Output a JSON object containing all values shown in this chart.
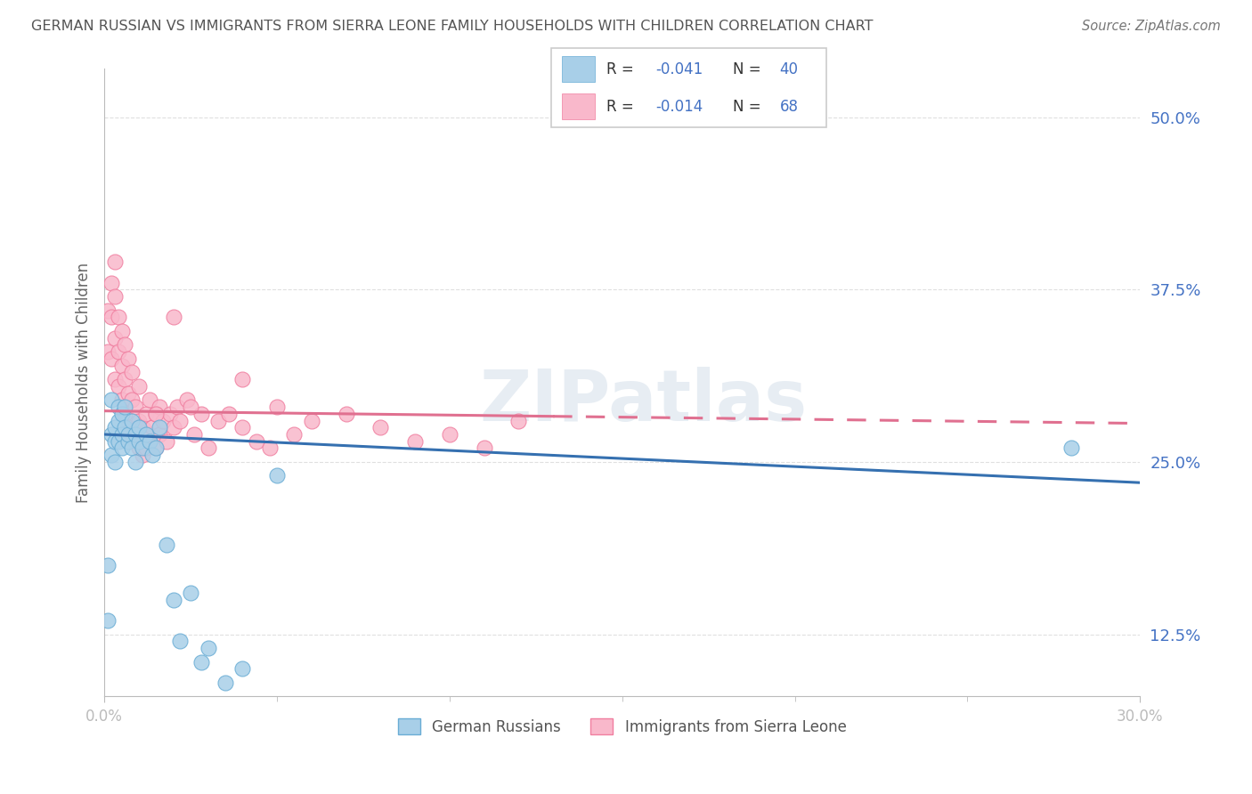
{
  "title": "GERMAN RUSSIAN VS IMMIGRANTS FROM SIERRA LEONE FAMILY HOUSEHOLDS WITH CHILDREN CORRELATION CHART",
  "source": "Source: ZipAtlas.com",
  "ylabel": "Family Households with Children",
  "r_values": [
    -0.041,
    -0.014
  ],
  "n_values": [
    40,
    68
  ],
  "xlim": [
    0.0,
    0.3
  ],
  "ylim": [
    0.08,
    0.535
  ],
  "yticks": [
    0.125,
    0.25,
    0.375,
    0.5
  ],
  "ytick_labels": [
    "12.5%",
    "25.0%",
    "37.5%",
    "50.0%"
  ],
  "blue_color": "#a8cfe8",
  "pink_color": "#f9b8cb",
  "blue_edge_color": "#6aadd5",
  "pink_edge_color": "#f07fa0",
  "blue_line_color": "#3570b0",
  "pink_line_color": "#e07090",
  "title_color": "#555555",
  "axis_color": "#bbbbbb",
  "grid_color": "#e0e0e0",
  "watermark": "ZIPatlas",
  "blue_scatter_x": [
    0.001,
    0.001,
    0.002,
    0.002,
    0.002,
    0.003,
    0.003,
    0.003,
    0.004,
    0.004,
    0.004,
    0.005,
    0.005,
    0.005,
    0.006,
    0.006,
    0.007,
    0.007,
    0.008,
    0.008,
    0.009,
    0.009,
    0.01,
    0.01,
    0.011,
    0.012,
    0.013,
    0.014,
    0.015,
    0.016,
    0.018,
    0.02,
    0.022,
    0.025,
    0.028,
    0.03,
    0.035,
    0.04,
    0.05,
    0.28
  ],
  "blue_scatter_y": [
    0.175,
    0.135,
    0.27,
    0.295,
    0.255,
    0.265,
    0.275,
    0.25,
    0.28,
    0.265,
    0.29,
    0.27,
    0.285,
    0.26,
    0.275,
    0.29,
    0.265,
    0.27,
    0.28,
    0.26,
    0.25,
    0.27,
    0.265,
    0.275,
    0.26,
    0.27,
    0.265,
    0.255,
    0.26,
    0.275,
    0.19,
    0.15,
    0.12,
    0.155,
    0.105,
    0.115,
    0.09,
    0.1,
    0.24,
    0.26
  ],
  "pink_scatter_x": [
    0.001,
    0.001,
    0.002,
    0.002,
    0.002,
    0.003,
    0.003,
    0.003,
    0.003,
    0.004,
    0.004,
    0.004,
    0.005,
    0.005,
    0.005,
    0.006,
    0.006,
    0.006,
    0.007,
    0.007,
    0.007,
    0.008,
    0.008,
    0.008,
    0.009,
    0.009,
    0.01,
    0.01,
    0.01,
    0.011,
    0.011,
    0.012,
    0.012,
    0.013,
    0.013,
    0.014,
    0.015,
    0.015,
    0.016,
    0.016,
    0.017,
    0.018,
    0.019,
    0.02,
    0.021,
    0.022,
    0.024,
    0.026,
    0.028,
    0.03,
    0.033,
    0.036,
    0.04,
    0.044,
    0.048,
    0.055,
    0.06,
    0.07,
    0.08,
    0.09,
    0.1,
    0.11,
    0.12,
    0.04,
    0.05,
    0.02,
    0.025,
    0.015
  ],
  "pink_scatter_y": [
    0.33,
    0.36,
    0.325,
    0.355,
    0.38,
    0.31,
    0.34,
    0.37,
    0.395,
    0.305,
    0.33,
    0.355,
    0.295,
    0.32,
    0.345,
    0.285,
    0.31,
    0.335,
    0.275,
    0.3,
    0.325,
    0.27,
    0.295,
    0.315,
    0.265,
    0.29,
    0.26,
    0.28,
    0.305,
    0.255,
    0.275,
    0.26,
    0.285,
    0.27,
    0.295,
    0.275,
    0.26,
    0.285,
    0.27,
    0.29,
    0.28,
    0.265,
    0.285,
    0.275,
    0.29,
    0.28,
    0.295,
    0.27,
    0.285,
    0.26,
    0.28,
    0.285,
    0.275,
    0.265,
    0.26,
    0.27,
    0.28,
    0.285,
    0.275,
    0.265,
    0.27,
    0.26,
    0.28,
    0.31,
    0.29,
    0.355,
    0.29,
    0.285
  ]
}
